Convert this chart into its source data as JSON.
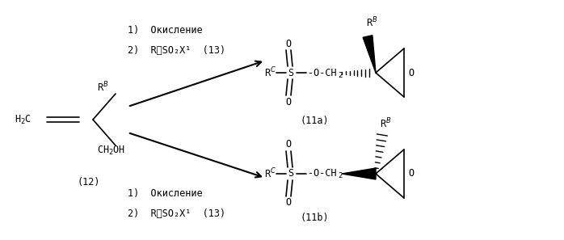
{
  "bg_color": "#ffffff",
  "fig_width": 6.98,
  "fig_height": 2.97,
  "dpi": 100,
  "text_color": "#000000",
  "font_family": "DejaVu Sans Mono",
  "reactant_label": "(12)",
  "product_top_label": "(11a)",
  "product_bot_label": "(11b)",
  "step1_text": "1)  Окисление",
  "step2_text": "2)  RᴄSO₂X¹  (13)",
  "step1b_text": "1)  Окисление",
  "step2b_text": "2)  RᴄSO₂X¹  (13)"
}
